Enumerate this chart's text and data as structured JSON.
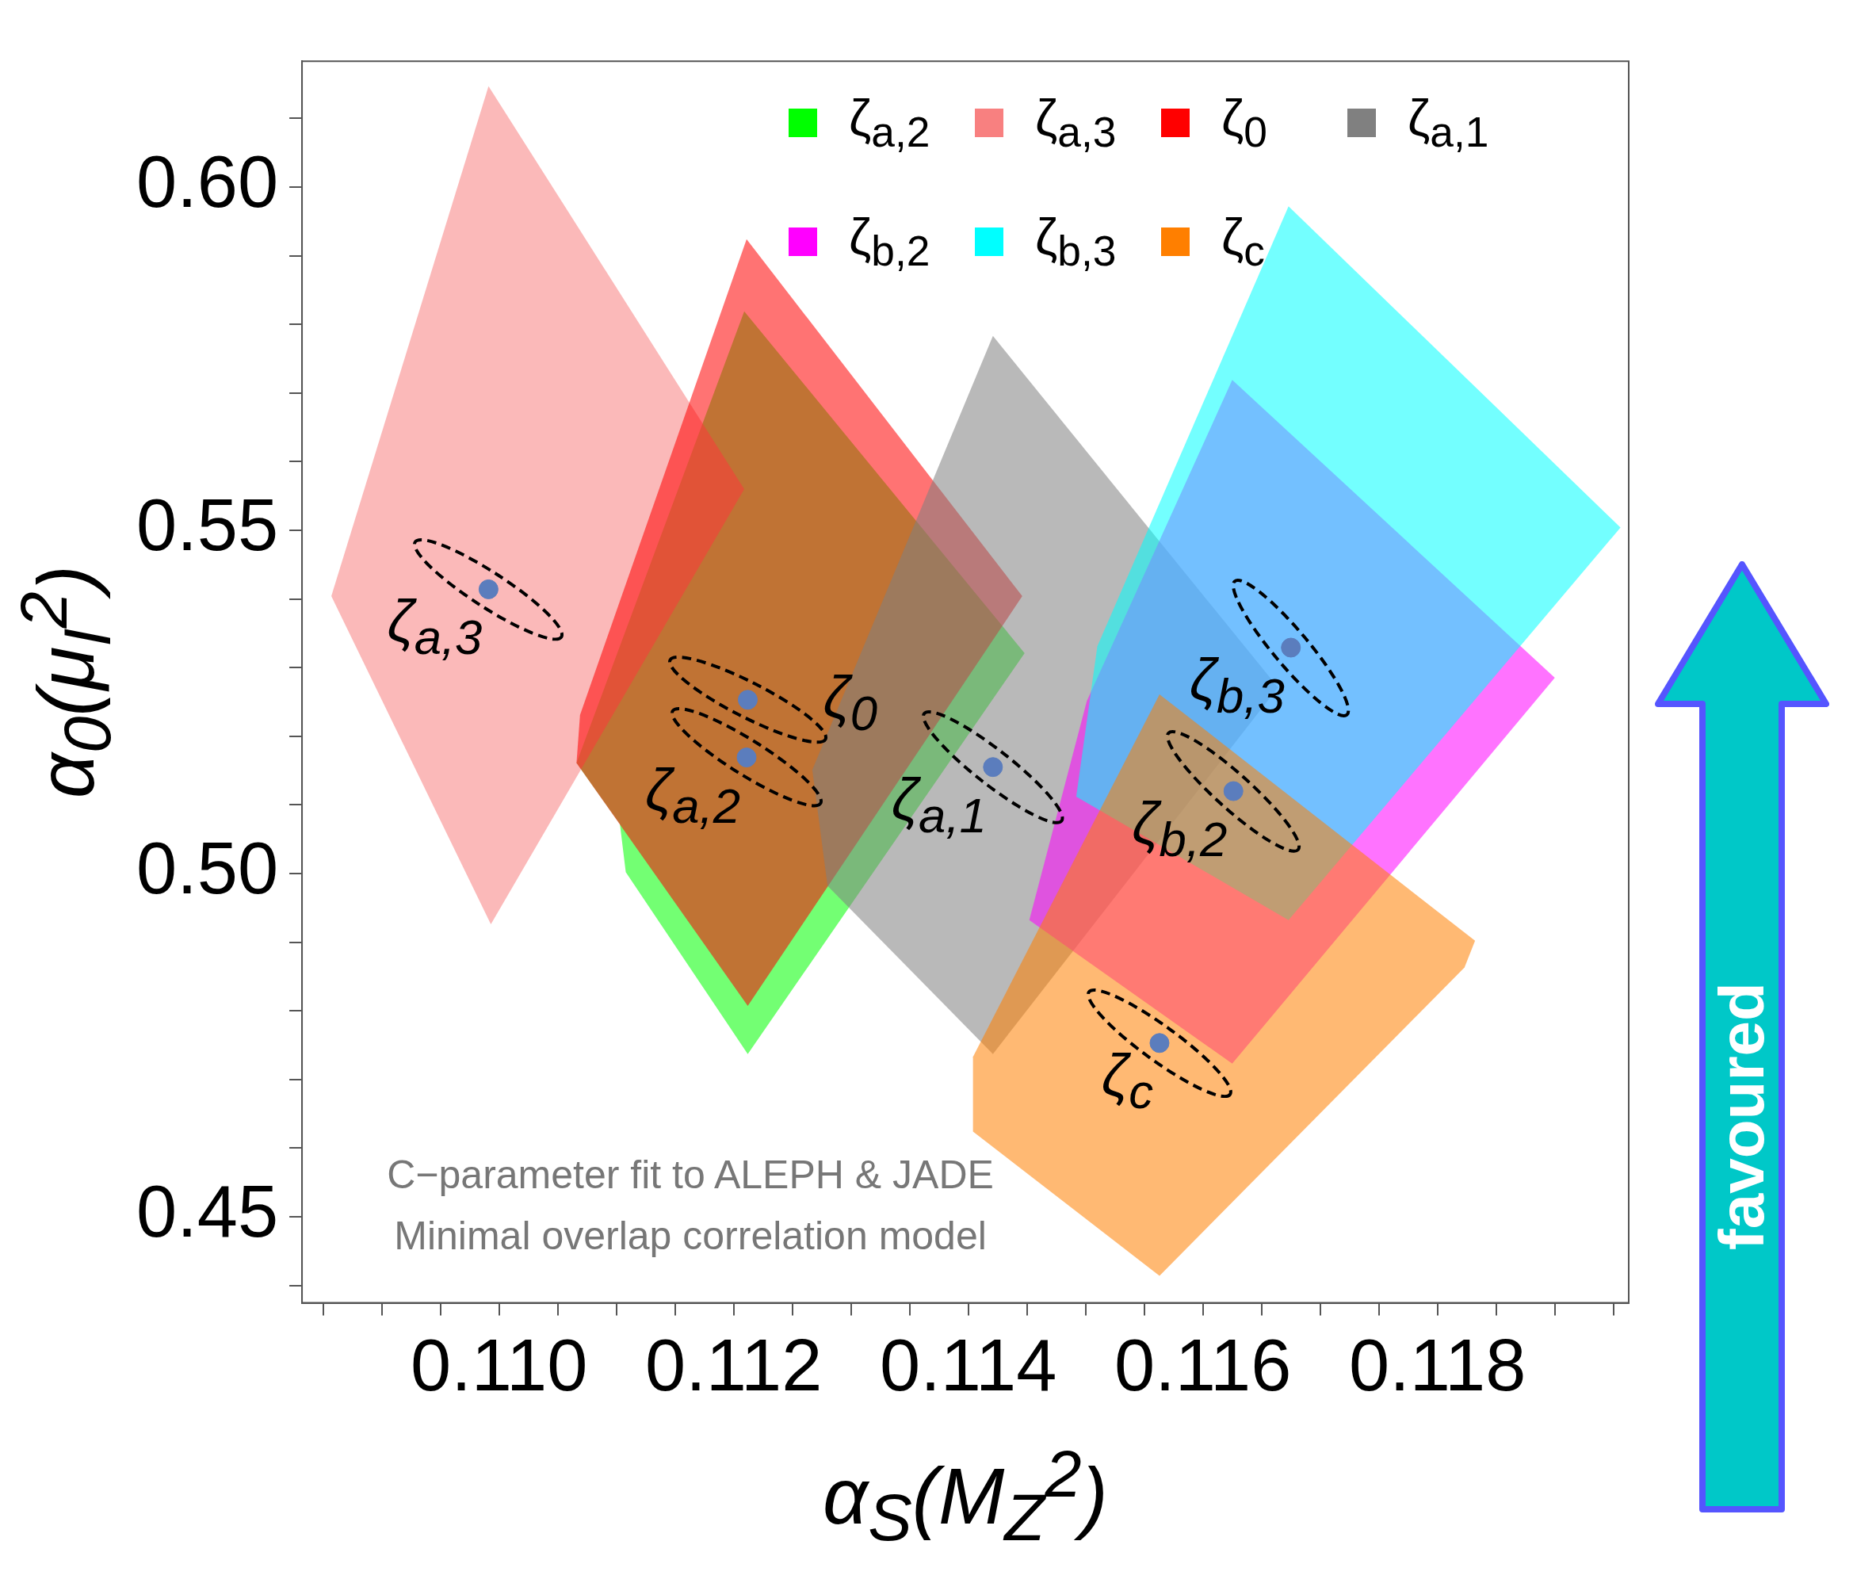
{
  "chart_data": {
    "type": "area",
    "xlabel": "α$_{S}$(M$_{Z}$$^{2}$)",
    "ylabel": "α$_{0}$(μ$_{I}$$^{2}$)",
    "xlim": [
      0.10832,
      0.11963
    ],
    "ylim": [
      0.43745,
      0.61833
    ],
    "xticks": [
      {
        "value": 0.1085,
        "label": null
      },
      {
        "value": 0.109,
        "label": null
      },
      {
        "value": 0.1095,
        "label": null
      },
      {
        "value": 0.11,
        "label": "0.110"
      },
      {
        "value": 0.1105,
        "label": null
      },
      {
        "value": 0.111,
        "label": null
      },
      {
        "value": 0.1115,
        "label": null
      },
      {
        "value": 0.112,
        "label": "0.112"
      },
      {
        "value": 0.1125,
        "label": null
      },
      {
        "value": 0.113,
        "label": null
      },
      {
        "value": 0.1135,
        "label": null
      },
      {
        "value": 0.114,
        "label": "0.114"
      },
      {
        "value": 0.1145,
        "label": null
      },
      {
        "value": 0.115,
        "label": null
      },
      {
        "value": 0.1155,
        "label": null
      },
      {
        "value": 0.116,
        "label": "0.116"
      },
      {
        "value": 0.1165,
        "label": null
      },
      {
        "value": 0.117,
        "label": null
      },
      {
        "value": 0.1175,
        "label": null
      },
      {
        "value": 0.118,
        "label": "0.118"
      },
      {
        "value": 0.1185,
        "label": null
      },
      {
        "value": 0.119,
        "label": null
      },
      {
        "value": 0.1195,
        "label": null
      }
    ],
    "yticks": [
      {
        "value": 0.44,
        "label": null
      },
      {
        "value": 0.45,
        "label": "0.45"
      },
      {
        "value": 0.46,
        "label": null
      },
      {
        "value": 0.47,
        "label": null
      },
      {
        "value": 0.48,
        "label": null
      },
      {
        "value": 0.49,
        "label": null
      },
      {
        "value": 0.5,
        "label": "0.50"
      },
      {
        "value": 0.51,
        "label": null
      },
      {
        "value": 0.52,
        "label": null
      },
      {
        "value": 0.53,
        "label": null
      },
      {
        "value": 0.54,
        "label": null
      },
      {
        "value": 0.55,
        "label": "0.55"
      },
      {
        "value": 0.56,
        "label": null
      },
      {
        "value": 0.57,
        "label": null
      },
      {
        "value": 0.58,
        "label": null
      },
      {
        "value": 0.59,
        "label": null
      },
      {
        "value": 0.6,
        "label": "0.60"
      },
      {
        "value": 0.61,
        "label": null
      }
    ],
    "grid": false,
    "legend": "top right",
    "series": [
      {
        "type": "area",
        "name": "ζ$_{a,2}$",
        "color": "#00ff00",
        "x": [
          0.11209,
          0.11448,
          0.11212,
          0.11108,
          0.11103,
          0.11066
        ],
        "values": [
          0.5819,
          0.5321,
          0.4737,
          0.5002,
          0.5072,
          0.5161
        ]
      },
      {
        "type": "area",
        "name": "ζ$_{a,3}$",
        "color": "#f88080",
        "x": [
          0.10991,
          0.11209,
          0.10993,
          0.10857
        ],
        "values": [
          0.6147,
          0.556,
          0.4926,
          0.5404
        ]
      },
      {
        "type": "area",
        "name": "ζ$_{0}$",
        "color": "#ff0000",
        "x": [
          0.11211,
          0.11446,
          0.11212,
          0.11066,
          0.11069
        ],
        "values": [
          0.5924,
          0.5404,
          0.4807,
          0.5161,
          0.5231
        ]
      },
      {
        "type": "area",
        "name": "ζ$_{a,1}$",
        "color": "#808080",
        "x": [
          0.11421,
          0.11664,
          0.11421,
          0.1128,
          0.11267
        ],
        "values": [
          0.5783,
          0.5271,
          0.4737,
          0.4982,
          0.5151
        ]
      },
      {
        "type": "area",
        "name": "ζ$_{b,2}$",
        "color": "#ff00ff",
        "x": [
          0.11625,
          0.119,
          0.11625,
          0.11452,
          0.11501
        ],
        "values": [
          0.5719,
          0.5285,
          0.4723,
          0.4932,
          0.5251
        ]
      },
      {
        "type": "area",
        "name": "ζ$_{b,3}$",
        "color": "#00ffff",
        "x": [
          0.11673,
          0.11956,
          0.11673,
          0.11492,
          0.1151
        ],
        "values": [
          0.5972,
          0.5504,
          0.4932,
          0.5112,
          0.5331
        ]
      },
      {
        "type": "area",
        "name": "ζ$_{c}$",
        "color": "#ff7f00",
        "x": [
          0.11563,
          0.11832,
          0.11823,
          0.11563,
          0.11404,
          0.11404
        ],
        "values": [
          0.5261,
          0.4902,
          0.4863,
          0.4414,
          0.4624,
          0.4733
        ]
      },
      {
        "type": "scatter",
        "color": "#5b7dbd",
        "marker": "circle",
        "x": [
          0.10991,
          0.11212,
          0.11211,
          0.11421,
          0.11675,
          0.11626,
          0.11563
        ],
        "values": [
          0.5414,
          0.5253,
          0.5169,
          0.5155,
          0.5329,
          0.512,
          0.4753
        ]
      }
    ],
    "annotations": [
      {
        "text": "ζ$_{a,3}$",
        "x": 0.10991,
        "y": 0.5414
      },
      {
        "text": "ζ$_{0}$",
        "x": 0.11212,
        "y": 0.5253
      },
      {
        "text": "ζ$_{a,2}$",
        "x": 0.11211,
        "y": 0.5169
      },
      {
        "text": "ζ$_{a,1}$",
        "x": 0.11421,
        "y": 0.5155
      },
      {
        "text": "ζ$_{b,3}$",
        "x": 0.11675,
        "y": 0.5329
      },
      {
        "text": "ζ$_{b,2}$",
        "x": 0.11626,
        "y": 0.512
      },
      {
        "text": "ζ$_{c}$",
        "x": 0.11563,
        "y": 0.4753
      },
      "C−parameter fit to ALEPH & JADE",
      "Minimal overlap correlation model",
      "favoured"
    ]
  }
}
